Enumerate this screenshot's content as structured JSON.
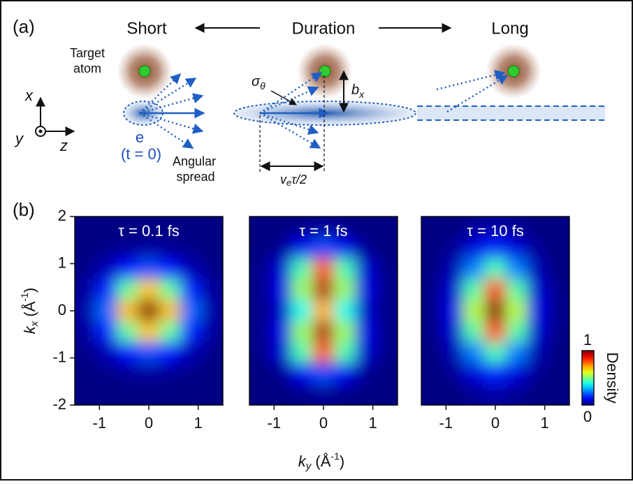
{
  "diagram": {
    "label": "(a)",
    "short": "Short",
    "duration": "Duration",
    "long": "Long",
    "target": [
      "Target",
      "atom"
    ],
    "axis_x": "x",
    "axis_y": "y",
    "axis_z": "z",
    "electron": "e",
    "time": "(t = 0)",
    "spread": [
      "Angular",
      "spread"
    ],
    "sigma": "σ",
    "sigma_sub": "θ",
    "b": "b",
    "b_sub": "x",
    "v": "v",
    "v_sub": "e",
    "v_rest": "τ/2"
  },
  "figure_b": {
    "label": "(b)",
    "x_label": {
      "symbol": "k",
      "sub": "y",
      "unit": " (Å",
      "sup": "-1",
      "close": ")"
    },
    "y_label": {
      "symbol": "k",
      "sub": "x",
      "unit": " (Å",
      "sup": "-1",
      "close": ")"
    },
    "colorbar": {
      "label": "Density",
      "lim": [
        0,
        1
      ],
      "ticks": [
        0,
        1
      ],
      "colormap": "jet"
    }
  },
  "chart_data": [
    {
      "type": "heatmap",
      "title": "τ = 0.1 fs",
      "xlim": [
        -1.5,
        1.5
      ],
      "xticks": [
        -1,
        0,
        1
      ],
      "ylim": [
        -2,
        2
      ],
      "yticks": [
        -2,
        -1,
        0,
        1,
        2
      ],
      "z": [
        [
          0,
          0,
          0,
          0,
          0,
          0,
          0
        ],
        [
          0,
          0.01,
          0.02,
          0.03,
          0.02,
          0.01,
          0
        ],
        [
          0.01,
          0.05,
          0.14,
          0.2,
          0.14,
          0.05,
          0.01
        ],
        [
          0.03,
          0.16,
          0.47,
          0.68,
          0.47,
          0.16,
          0.03
        ],
        [
          0.04,
          0.23,
          0.69,
          1,
          0.69,
          0.23,
          0.04
        ],
        [
          0.03,
          0.16,
          0.47,
          0.68,
          0.47,
          0.16,
          0.03
        ],
        [
          0.01,
          0.05,
          0.14,
          0.2,
          0.14,
          0.05,
          0.01
        ],
        [
          0,
          0.01,
          0.02,
          0.03,
          0.02,
          0.01,
          0
        ],
        [
          0,
          0,
          0,
          0,
          0,
          0,
          0
        ]
      ]
    },
    {
      "type": "heatmap",
      "title": "τ = 1 fs",
      "xlim": [
        -1.5,
        1.5
      ],
      "xticks": [
        -1,
        0,
        1
      ],
      "ylim": [
        -2,
        2
      ],
      "z": [
        [
          0,
          0,
          0.01,
          0.02,
          0.01,
          0,
          0
        ],
        [
          0,
          0.02,
          0.11,
          0.2,
          0.11,
          0.02,
          0
        ],
        [
          0.01,
          0.08,
          0.45,
          0.8,
          0.45,
          0.08,
          0.01
        ],
        [
          0.01,
          0.1,
          0.53,
          0.95,
          0.53,
          0.1,
          0.01
        ],
        [
          0.01,
          0.07,
          0.39,
          0.7,
          0.39,
          0.07,
          0.01
        ],
        [
          0.01,
          0.1,
          0.53,
          0.95,
          0.53,
          0.1,
          0.01
        ],
        [
          0.01,
          0.08,
          0.45,
          0.8,
          0.45,
          0.08,
          0.01
        ],
        [
          0,
          0.02,
          0.11,
          0.2,
          0.11,
          0.02,
          0
        ],
        [
          0,
          0,
          0.01,
          0.02,
          0.01,
          0,
          0
        ]
      ]
    },
    {
      "type": "heatmap",
      "title": "τ = 10 fs",
      "xlim": [
        -1.5,
        1.5
      ],
      "xticks": [
        -1,
        0,
        1
      ],
      "ylim": [
        -2,
        2
      ],
      "z": [
        [
          0,
          0,
          0.02,
          0.04,
          0.02,
          0,
          0
        ],
        [
          0,
          0.02,
          0.09,
          0.16,
          0.09,
          0.02,
          0
        ],
        [
          0,
          0.05,
          0.25,
          0.45,
          0.25,
          0.05,
          0
        ],
        [
          0.01,
          0.08,
          0.46,
          0.82,
          0.46,
          0.08,
          0.01
        ],
        [
          0.01,
          0.1,
          0.56,
          1,
          0.56,
          0.1,
          0.01
        ],
        [
          0.01,
          0.08,
          0.46,
          0.82,
          0.46,
          0.08,
          0.01
        ],
        [
          0,
          0.05,
          0.25,
          0.45,
          0.25,
          0.05,
          0
        ],
        [
          0,
          0.02,
          0.09,
          0.16,
          0.09,
          0.02,
          0
        ],
        [
          0,
          0,
          0.02,
          0.04,
          0.02,
          0,
          0
        ]
      ]
    }
  ]
}
